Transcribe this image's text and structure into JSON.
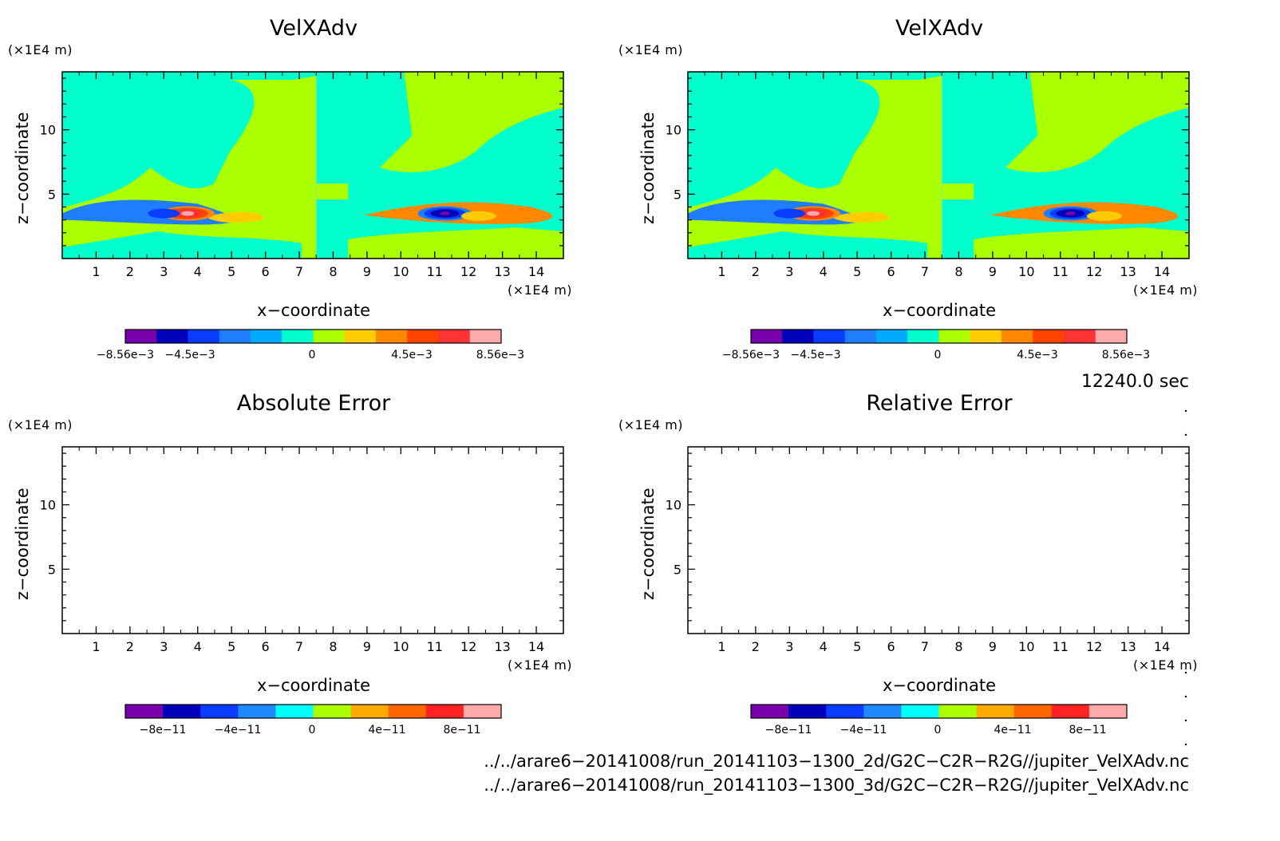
{
  "panels": [
    {
      "title": "VelXAdv",
      "y_unit": "(×1E4 m)",
      "x_unit": "(×1E4 m)",
      "xlabel": "x−coordinate",
      "ylabel": "z−coordinate",
      "colorbar_ticks": [
        "−8.56e−3",
        "−4.5e−3",
        "0",
        "4.5e−3",
        "8.56e−3"
      ]
    },
    {
      "title": "VelXAdv",
      "y_unit": "(×1E4 m)",
      "x_unit": "(×1E4 m)",
      "xlabel": "x−coordinate",
      "ylabel": "z−coordinate",
      "colorbar_ticks": [
        "−8.56e−3",
        "−4.5e−3",
        "0",
        "4.5e−3",
        "8.56e−3"
      ]
    },
    {
      "title": "Absolute Error",
      "y_unit": "(×1E4 m)",
      "x_unit": "(×1E4 m)",
      "xlabel": "x−coordinate",
      "ylabel": "z−coordinate",
      "colorbar_ticks": [
        "−8e−11",
        "−4e−11",
        "0",
        "4e−11",
        "8e−11"
      ]
    },
    {
      "title": "Relative Error",
      "y_unit": "(×1E4 m)",
      "x_unit": "(×1E4 m)",
      "xlabel": "x−coordinate",
      "ylabel": "z−coordinate",
      "colorbar_ticks": [
        "−8e−11",
        "−4e−11",
        "0",
        "4e−11",
        "8e−11"
      ]
    }
  ],
  "time_stamp": "12240.0 sec",
  "file_paths": [
    "../../arare6−20141008/run_20141103−1300_2d/G2C−C2R−R2G//jupiter_VelXAdv.nc",
    "../../arare6−20141008/run_20141103−1300_3d/G2C−C2R−R2G//jupiter_VelXAdv.nc"
  ],
  "colors": {
    "scale_top": [
      "#7700aa",
      "#0000bb",
      "#0a3cff",
      "#1e7eff",
      "#00aaff",
      "#00ffcc",
      "#aaff00",
      "#ffcc00",
      "#ff8800",
      "#ff4400",
      "#ff3333",
      "#ffaaaa"
    ],
    "scale_bottom": [
      "#7700aa",
      "#0000bb",
      "#0a3cff",
      "#1e88ff",
      "#00ffff",
      "#aaff00",
      "#ffaa00",
      "#ff6600",
      "#ff2222",
      "#ffaaaa"
    ]
  },
  "chart_data": [
    {
      "type": "heatmap",
      "title": "VelXAdv",
      "xlabel": "x−coordinate",
      "ylabel": "z−coordinate",
      "xlim": [
        0,
        14.8
      ],
      "ylim": [
        0,
        14.5
      ],
      "xticks": [
        1,
        2,
        3,
        4,
        5,
        6,
        7,
        8,
        9,
        10,
        11,
        12,
        13,
        14
      ],
      "yticks": [
        5,
        10
      ],
      "colorbar_range": [
        -0.00856,
        0.00856
      ],
      "features": [
        {
          "kind": "vertical_divide_x",
          "x": 7.5
        },
        {
          "kind": "max",
          "x": 3.7,
          "z": 3.5,
          "value": 0.0085
        },
        {
          "kind": "min",
          "x": 11.3,
          "z": 3.5,
          "value": -0.0085
        },
        {
          "kind": "min",
          "x": 3.0,
          "z": 3.5,
          "value": -0.004
        },
        {
          "kind": "max",
          "x": 12.3,
          "z": 3.3,
          "value": 0.004
        }
      ]
    },
    {
      "type": "heatmap",
      "title": "VelXAdv",
      "xlabel": "x−coordinate",
      "ylabel": "z−coordinate",
      "xlim": [
        0,
        14.8
      ],
      "ylim": [
        0,
        14.5
      ],
      "xticks": [
        1,
        2,
        3,
        4,
        5,
        6,
        7,
        8,
        9,
        10,
        11,
        12,
        13,
        14
      ],
      "yticks": [
        5,
        10
      ],
      "colorbar_range": [
        -0.00856,
        0.00856
      ],
      "features": [
        {
          "kind": "vertical_divide_x",
          "x": 7.5
        },
        {
          "kind": "max",
          "x": 3.7,
          "z": 3.5,
          "value": 0.0085
        },
        {
          "kind": "min",
          "x": 11.3,
          "z": 3.5,
          "value": -0.0085
        },
        {
          "kind": "min",
          "x": 3.0,
          "z": 3.5,
          "value": -0.004
        },
        {
          "kind": "max",
          "x": 12.3,
          "z": 3.3,
          "value": 0.004
        }
      ]
    },
    {
      "type": "heatmap",
      "title": "Absolute Error",
      "xlabel": "x−coordinate",
      "ylabel": "z−coordinate",
      "xlim": [
        0,
        14.8
      ],
      "ylim": [
        0,
        14.5
      ],
      "xticks": [
        1,
        2,
        3,
        4,
        5,
        6,
        7,
        8,
        9,
        10,
        11,
        12,
        13,
        14
      ],
      "yticks": [
        5,
        10
      ],
      "colorbar_range": [
        -1e-10,
        1e-10
      ],
      "values": "empty (no contours drawn)"
    },
    {
      "type": "heatmap",
      "title": "Relative Error",
      "xlabel": "x−coordinate",
      "ylabel": "z−coordinate",
      "xlim": [
        0,
        14.8
      ],
      "ylim": [
        0,
        14.5
      ],
      "xticks": [
        1,
        2,
        3,
        4,
        5,
        6,
        7,
        8,
        9,
        10,
        11,
        12,
        13,
        14
      ],
      "yticks": [
        5,
        10
      ],
      "colorbar_range": [
        -1e-10,
        1e-10
      ],
      "values": "empty (no contours drawn)"
    }
  ]
}
